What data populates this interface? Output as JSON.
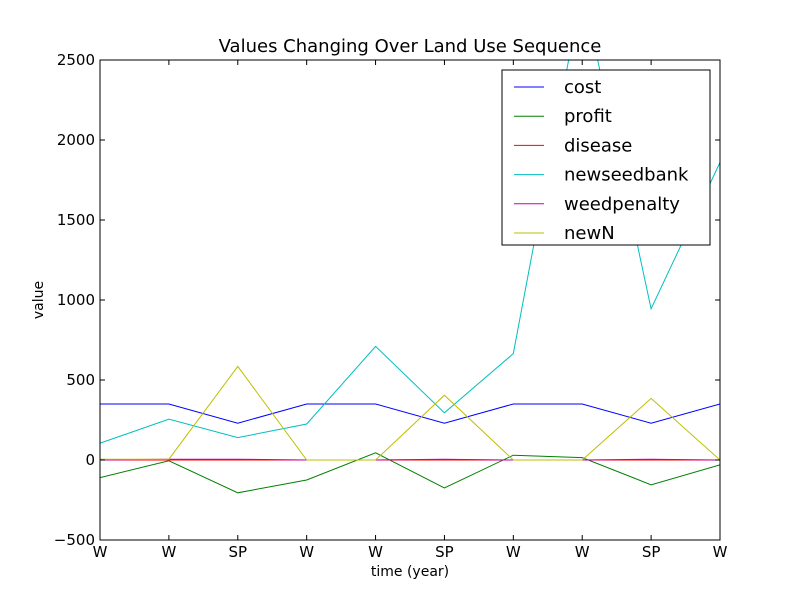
{
  "chart_data": {
    "type": "line",
    "title": "Values Changing Over Land Use Sequence",
    "xlabel": "time (year)",
    "ylabel": "value",
    "categories": [
      "W",
      "W",
      "SP",
      "W",
      "W",
      "SP",
      "W",
      "W",
      "SP",
      "W"
    ],
    "ylim": [
      -500,
      2500
    ],
    "yticks": [
      -500,
      0,
      500,
      1000,
      1500,
      2000,
      2500
    ],
    "ytick_labels": [
      "−500",
      "0",
      "500",
      "1000",
      "1500",
      "2000",
      "2500"
    ],
    "grid": false,
    "legend_position": "top-right",
    "series": [
      {
        "name": "cost",
        "color": "#0000ff",
        "values": [
          350,
          350,
          230,
          350,
          350,
          230,
          350,
          350,
          230,
          350
        ]
      },
      {
        "name": "profit",
        "color": "#008000",
        "values": [
          -110,
          -5,
          -205,
          -125,
          45,
          -175,
          30,
          15,
          -155,
          -30
        ]
      },
      {
        "name": "disease",
        "color": "#ff0000",
        "values": [
          0,
          0,
          0,
          0,
          0,
          0,
          0,
          0,
          0,
          0
        ]
      },
      {
        "name": "newseedbank",
        "color": "#00bfbf",
        "values": [
          105,
          255,
          140,
          225,
          710,
          295,
          665,
          2950,
          945,
          1860
        ]
      },
      {
        "name": "weedpenalty",
        "color": "#bf00bf",
        "values": [
          0,
          5,
          5,
          0,
          0,
          5,
          0,
          0,
          5,
          0
        ]
      },
      {
        "name": "newN",
        "color": "#bfbf00",
        "values": [
          5,
          5,
          585,
          0,
          0,
          405,
          0,
          0,
          385,
          0
        ]
      }
    ]
  }
}
